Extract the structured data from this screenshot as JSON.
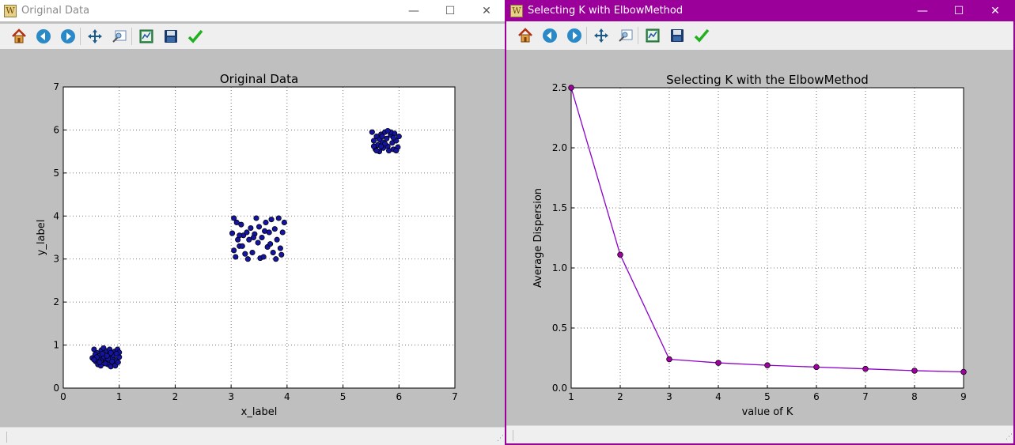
{
  "window1": {
    "title": "Original Data",
    "controls": {
      "minimize": "—",
      "maximize": "☐",
      "close": "✕"
    }
  },
  "window2": {
    "title": "Selecting K with ElbowMethod",
    "controls": {
      "minimize": "—",
      "maximize": "☐",
      "close": "✕"
    }
  },
  "toolbar": {
    "buttons": [
      "home-icon",
      "back-arrow-icon",
      "forward-arrow-icon",
      "pan-arrows-icon",
      "zoom-rect-icon",
      "configure-subplots-icon",
      "save-disk-icon",
      "checkmark-icon"
    ]
  },
  "colors": {
    "accent": "#9b009b",
    "scatter_points": "#1414a0",
    "elbow_line": "#8c00c8",
    "elbow_markers": "#a000a0",
    "plot_background": "#ffffff",
    "figure_background": "#bfbfbf"
  },
  "chart_data": [
    {
      "type": "scatter",
      "title": "Original Data",
      "xlabel": "x_label",
      "ylabel": "y_label",
      "xlim": [
        0,
        7
      ],
      "ylim": [
        0,
        7
      ],
      "xticks": [
        "0",
        "1",
        "2",
        "3",
        "4",
        "5",
        "6",
        "7"
      ],
      "yticks": [
        "0",
        "1",
        "2",
        "3",
        "4",
        "5",
        "6",
        "7"
      ],
      "grid": true,
      "series": [
        {
          "points": [
            [
              0.55,
              0.9
            ],
            [
              0.6,
              0.82
            ],
            [
              0.65,
              0.75
            ],
            [
              0.7,
              0.68
            ],
            [
              0.75,
              0.6
            ],
            [
              0.8,
              0.55
            ],
            [
              0.85,
              0.5
            ],
            [
              0.9,
              0.58
            ],
            [
              0.95,
              0.65
            ],
            [
              1.0,
              0.72
            ],
            [
              0.58,
              0.62
            ],
            [
              0.62,
              0.55
            ],
            [
              0.68,
              0.88
            ],
            [
              0.72,
              0.93
            ],
            [
              0.78,
              0.86
            ],
            [
              0.82,
              0.78
            ],
            [
              0.88,
              0.7
            ],
            [
              0.92,
              0.85
            ],
            [
              0.97,
              0.9
            ],
            [
              1.0,
              0.83
            ],
            [
              0.52,
              0.7
            ],
            [
              0.57,
              0.78
            ],
            [
              0.63,
              0.66
            ],
            [
              0.67,
              0.52
            ],
            [
              0.73,
              0.72
            ],
            [
              0.77,
              0.64
            ],
            [
              0.83,
              0.9
            ],
            [
              0.87,
              0.62
            ],
            [
              0.93,
              0.52
            ],
            [
              0.98,
              0.6
            ],
            [
              0.6,
              0.72
            ],
            [
              0.7,
              0.8
            ],
            [
              0.8,
              0.68
            ],
            [
              0.9,
              0.76
            ],
            [
              0.75,
              0.57
            ],
            [
              0.85,
              0.82
            ],
            [
              0.65,
              0.6
            ],
            [
              0.95,
              0.8
            ],
            [
              0.55,
              0.66
            ],
            [
              0.78,
              0.75
            ],
            [
              3.02,
              3.6
            ],
            [
              3.05,
              3.2
            ],
            [
              3.08,
              3.05
            ],
            [
              3.1,
              3.85
            ],
            [
              3.12,
              3.45
            ],
            [
              3.15,
              3.3
            ],
            [
              3.18,
              3.8
            ],
            [
              3.22,
              3.55
            ],
            [
              3.25,
              3.12
            ],
            [
              3.28,
              3.62
            ],
            [
              3.32,
              3.45
            ],
            [
              3.35,
              3.72
            ],
            [
              3.38,
              3.15
            ],
            [
              3.42,
              3.58
            ],
            [
              3.45,
              3.95
            ],
            [
              3.48,
              3.38
            ],
            [
              3.52,
              3.02
            ],
            [
              3.55,
              3.5
            ],
            [
              3.58,
              3.05
            ],
            [
              3.62,
              3.85
            ],
            [
              3.65,
              3.28
            ],
            [
              3.68,
              3.62
            ],
            [
              3.72,
              3.92
            ],
            [
              3.75,
              3.15
            ],
            [
              3.78,
              3.7
            ],
            [
              3.82,
              3.45
            ],
            [
              3.85,
              3.95
            ],
            [
              3.88,
              3.25
            ],
            [
              3.92,
              3.62
            ],
            [
              3.95,
              3.85
            ],
            [
              3.05,
              3.95
            ],
            [
              3.2,
              3.3
            ],
            [
              3.4,
              3.5
            ],
            [
              3.6,
              3.65
            ],
            [
              3.7,
              3.35
            ],
            [
              3.9,
              3.1
            ],
            [
              3.3,
              3.0
            ],
            [
              3.5,
              3.75
            ],
            [
              3.8,
              3.0
            ],
            [
              3.15,
              3.55
            ],
            [
              5.52,
              5.95
            ],
            [
              5.55,
              5.75
            ],
            [
              5.58,
              5.55
            ],
            [
              5.6,
              5.85
            ],
            [
              5.62,
              5.65
            ],
            [
              5.65,
              5.5
            ],
            [
              5.68,
              5.9
            ],
            [
              5.7,
              5.72
            ],
            [
              5.72,
              5.58
            ],
            [
              5.75,
              5.95
            ],
            [
              5.78,
              5.8
            ],
            [
              5.8,
              5.62
            ],
            [
              5.82,
              5.52
            ],
            [
              5.85,
              5.88
            ],
            [
              5.88,
              5.7
            ],
            [
              5.9,
              5.55
            ],
            [
              5.92,
              5.92
            ],
            [
              5.95,
              5.75
            ],
            [
              5.98,
              5.6
            ],
            [
              6.0,
              5.85
            ],
            [
              5.55,
              5.62
            ],
            [
              5.65,
              5.78
            ],
            [
              5.75,
              5.68
            ],
            [
              5.85,
              5.95
            ],
            [
              5.95,
              5.52
            ],
            [
              5.6,
              5.52
            ],
            [
              5.7,
              5.85
            ],
            [
              5.8,
              5.98
            ],
            [
              5.9,
              5.82
            ],
            [
              5.68,
              5.62
            ]
          ]
        }
      ]
    },
    {
      "type": "line",
      "title": "Selecting K with the ElbowMethod",
      "xlabel": "value of K",
      "ylabel": "Average Dispersion",
      "xlim": [
        1,
        9
      ],
      "ylim": [
        0,
        2.5
      ],
      "xticks": [
        "1",
        "2",
        "3",
        "4",
        "5",
        "6",
        "7",
        "8",
        "9"
      ],
      "yticks": [
        "0.0",
        "0.5",
        "1.0",
        "1.5",
        "2.0",
        "2.5"
      ],
      "grid": true,
      "x": [
        1,
        2,
        3,
        4,
        5,
        6,
        7,
        8,
        9
      ],
      "series": [
        {
          "values": [
            2.5,
            1.11,
            0.24,
            0.21,
            0.19,
            0.175,
            0.16,
            0.145,
            0.135
          ]
        }
      ]
    }
  ]
}
